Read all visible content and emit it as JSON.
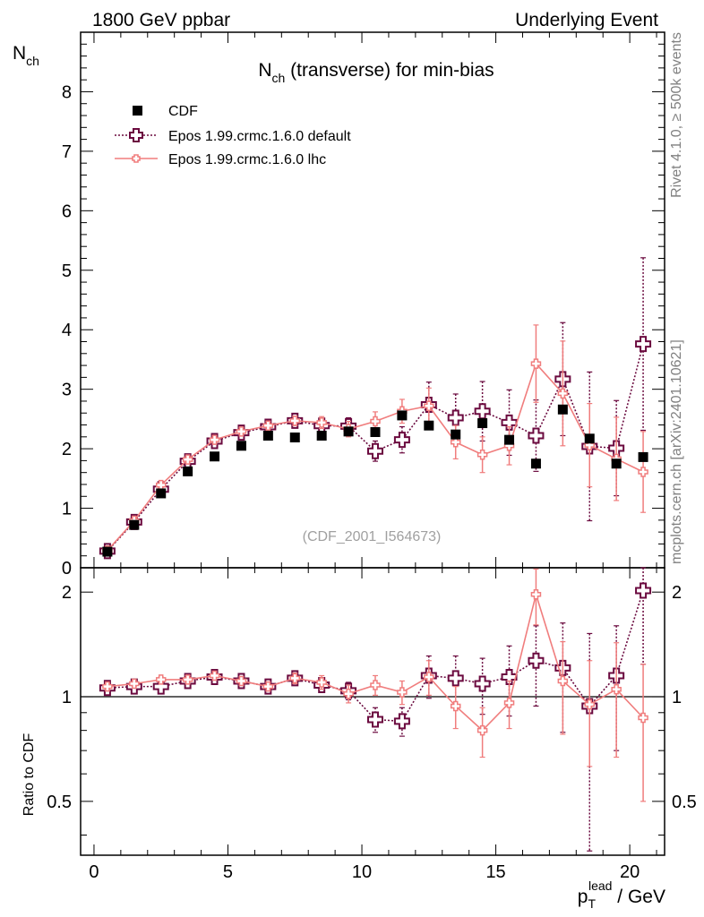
{
  "header": {
    "left": "1800 GeV ppbar",
    "right": "Underlying Event"
  },
  "side_text": {
    "rivet": "Rivet 4.1.0, ≥ 500k events",
    "mcplots": "mcplots.cern.ch [arXiv:2401.10621]"
  },
  "chart_data": {
    "type": "scatter",
    "title": "N",
    "title_sub": "ch",
    "title_rest": " (transverse) for min-bias",
    "watermark": "(CDF_2001_I564673)",
    "ylabel": "N",
    "ylabel_sub": "ch",
    "xlabel": "p",
    "xlabel_sub": "T",
    "xlabel_sup": "lead",
    "xlabel_rest": " / GeV",
    "ratio_ylabel": "Ratio to CDF",
    "xlim": [
      -0.5,
      21.3
    ],
    "ylim": [
      0,
      9.0
    ],
    "ratio_ylim": [
      0.35,
      2.35
    ],
    "x_ticks": [
      "0",
      "5",
      "10",
      "15",
      "20"
    ],
    "x_tick_values": [
      0,
      5,
      10,
      15,
      20
    ],
    "y_ticks": [
      "0",
      "1",
      "2",
      "3",
      "4",
      "5",
      "6",
      "7",
      "8"
    ],
    "y_tick_values": [
      0,
      1,
      2,
      3,
      4,
      5,
      6,
      7,
      8
    ],
    "ratio_ticks": [
      "0.5",
      "1",
      "2"
    ],
    "ratio_tick_values": [
      0.5,
      1,
      2
    ],
    "x": [
      0.5,
      1.5,
      2.5,
      3.5,
      4.5,
      5.5,
      6.5,
      7.5,
      8.5,
      9.5,
      10.5,
      11.5,
      12.5,
      13.5,
      14.5,
      15.5,
      16.5,
      17.5,
      18.5,
      19.5,
      20.5
    ],
    "series": [
      {
        "name": "CDF",
        "color": "#000000",
        "values": [
          0.27,
          0.72,
          1.25,
          1.62,
          1.87,
          2.05,
          2.22,
          2.19,
          2.22,
          2.29,
          2.28,
          2.56,
          2.39,
          2.24,
          2.43,
          2.15,
          1.75,
          2.66,
          2.17,
          1.75,
          1.86
        ]
      },
      {
        "name": "Epos 1.99.crmc.1.6.0 default",
        "color": "#6b0a3f",
        "values": [
          0.28,
          0.77,
          1.32,
          1.79,
          2.13,
          2.27,
          2.37,
          2.47,
          2.39,
          2.38,
          1.96,
          2.15,
          2.74,
          2.52,
          2.63,
          2.44,
          2.22,
          3.17,
          2.04,
          2.01,
          3.76
        ],
        "errors": [
          0.02,
          0.03,
          0.04,
          0.05,
          0.06,
          0.06,
          0.07,
          0.08,
          0.1,
          0.14,
          0.17,
          0.22,
          0.38,
          0.4,
          0.5,
          0.55,
          0.6,
          0.95,
          1.25,
          0.8,
          1.45
        ]
      },
      {
        "name": "Epos 1.99.crmc.1.6.0 lhc",
        "color": "#f07d7d",
        "values": [
          0.29,
          0.79,
          1.39,
          1.82,
          2.15,
          2.29,
          2.39,
          2.47,
          2.44,
          2.33,
          2.46,
          2.63,
          2.72,
          2.11,
          1.9,
          2.05,
          3.43,
          2.93,
          2.06,
          1.83,
          1.61
        ],
        "errors": [
          0.02,
          0.03,
          0.04,
          0.05,
          0.06,
          0.06,
          0.07,
          0.08,
          0.1,
          0.13,
          0.16,
          0.2,
          0.3,
          0.28,
          0.3,
          0.32,
          0.65,
          0.88,
          0.7,
          0.7,
          0.68
        ]
      }
    ],
    "ratios": [
      {
        "name": "Epos 1.99.crmc.1.6.0 default",
        "values": [
          1.06,
          1.07,
          1.07,
          1.11,
          1.14,
          1.11,
          1.07,
          1.13,
          1.08,
          1.04,
          0.86,
          0.85,
          1.15,
          1.13,
          1.09,
          1.14,
          1.27,
          1.21,
          0.94,
          1.15,
          2.02
        ],
        "errors": [
          0.02,
          0.02,
          0.02,
          0.03,
          0.03,
          0.03,
          0.03,
          0.04,
          0.05,
          0.06,
          0.07,
          0.08,
          0.16,
          0.18,
          0.2,
          0.26,
          0.33,
          0.42,
          0.58,
          0.45,
          0.78
        ]
      },
      {
        "name": "Epos 1.99.crmc.1.6.0 lhc",
        "values": [
          1.07,
          1.09,
          1.12,
          1.12,
          1.15,
          1.11,
          1.07,
          1.13,
          1.1,
          1.02,
          1.08,
          1.03,
          1.14,
          0.94,
          0.8,
          0.96,
          1.97,
          1.11,
          0.95,
          1.05,
          0.87
        ],
        "errors": [
          0.02,
          0.02,
          0.02,
          0.03,
          0.03,
          0.03,
          0.03,
          0.04,
          0.05,
          0.06,
          0.07,
          0.08,
          0.13,
          0.13,
          0.13,
          0.15,
          0.36,
          0.33,
          0.32,
          0.38,
          0.37
        ]
      }
    ],
    "legend_position": "top-left"
  }
}
